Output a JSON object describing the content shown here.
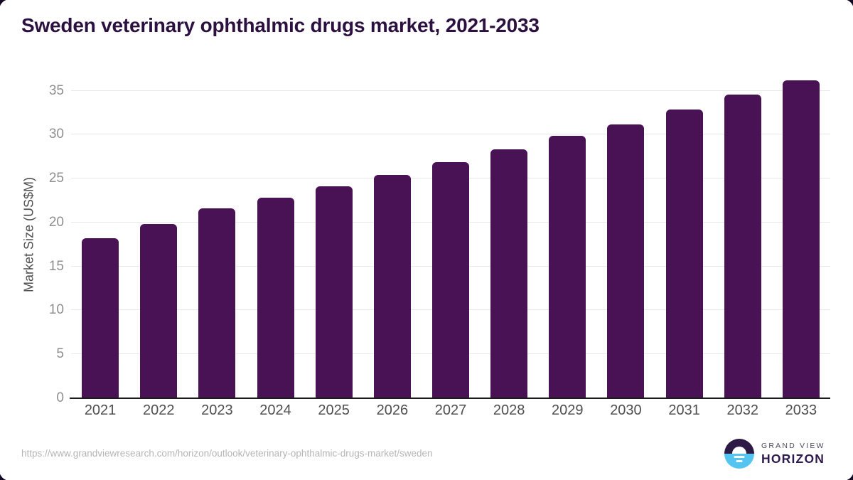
{
  "chart_data": {
    "type": "bar",
    "title": "Sweden veterinary ophthalmic drugs market, 2021-2033",
    "categories": [
      "2021",
      "2022",
      "2023",
      "2024",
      "2025",
      "2026",
      "2027",
      "2028",
      "2029",
      "2030",
      "2031",
      "2032",
      "2033"
    ],
    "values": [
      18.2,
      19.8,
      21.6,
      22.8,
      24.1,
      25.4,
      26.9,
      28.3,
      29.9,
      31.2,
      32.9,
      34.6,
      36.2
    ],
    "xlabel": "",
    "ylabel": "Market Size (US$M)",
    "ylim": [
      0,
      35
    ],
    "yticks": [
      0,
      5,
      10,
      15,
      20,
      25,
      30,
      35
    ],
    "grid": true,
    "legend": false,
    "bar_color": "#481255"
  },
  "colors": {
    "title_text": "#2b1040",
    "bar": "#481255",
    "gridline": "#e8e8e8",
    "axis_line": "#1c1c1c",
    "ytick_text": "#8f8f8f",
    "xtick_text": "#4f4f4f",
    "url_text": "#b5b5b5",
    "logo_dark": "#2d1a45",
    "logo_blue": "#54c5f1",
    "frame": "#150a26"
  },
  "footer": {
    "source_url": "https://www.grandviewresearch.com/horizon/outlook/veterinary-ophthalmic-drugs-market/sweden",
    "logo": {
      "brand_top": "GRAND VIEW",
      "brand_bottom": "HORIZON"
    }
  }
}
